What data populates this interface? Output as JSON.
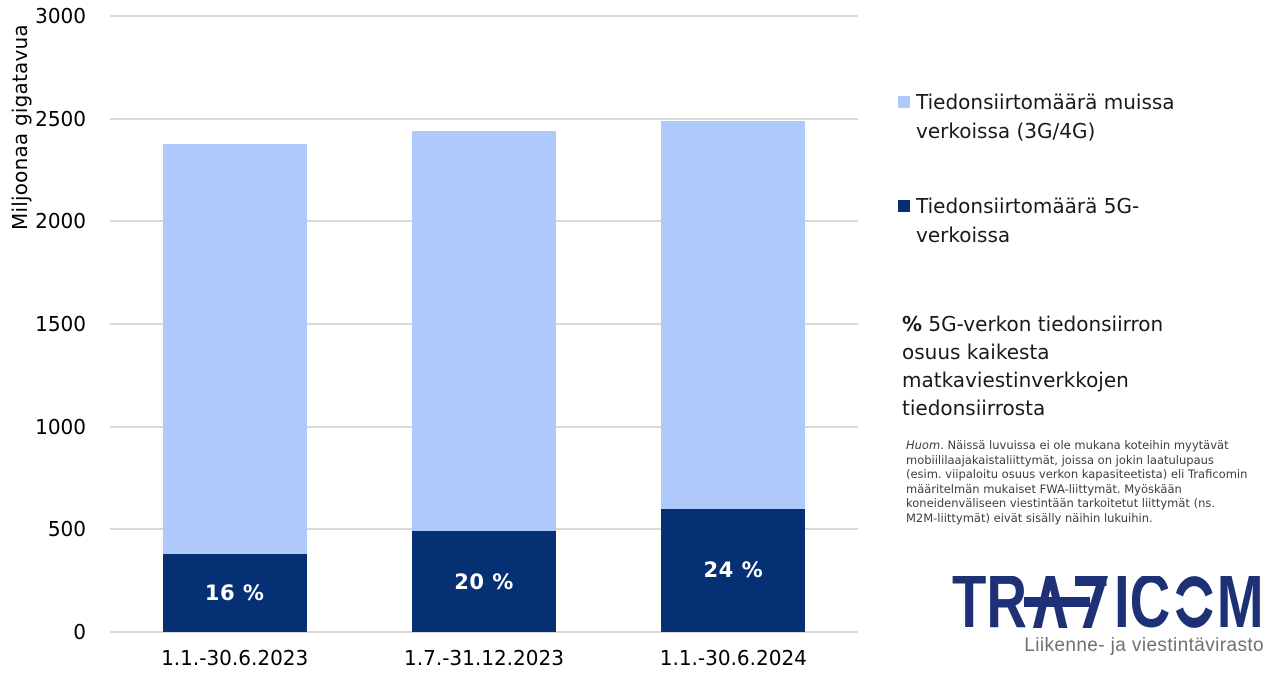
{
  "chart_data": {
    "type": "bar",
    "stacked": true,
    "title": "",
    "xlabel": "",
    "ylabel": "Miljoonaa gigatavua",
    "ylim": [
      0,
      3000
    ],
    "yticks": [
      0,
      500,
      1000,
      1500,
      2000,
      2500,
      3000
    ],
    "grid": "horizontal",
    "gridline_color": "#D9D9D9",
    "legend_position": "right",
    "categories": [
      "1.1.-30.6.2023",
      "1.7.-31.12.2023",
      "1.1.-30.6.2024"
    ],
    "series": [
      {
        "name": "Tiedonsiirtomäärä muissa verkoissa (3G/4G)",
        "color": "#AEC9FA",
        "stack_position": "top",
        "values": [
          1995,
          1950,
          1890
        ]
      },
      {
        "name": "Tiedonsiirtomäärä 5G-verkoissa",
        "color": "#053073",
        "stack_position": "bottom",
        "values": [
          380,
          490,
          600
        ]
      }
    ],
    "totals": [
      2375,
      2440,
      2490
    ],
    "bar_labels": {
      "on_series": "Tiedonsiirtomäärä 5G-verkoissa",
      "values": [
        "16 %",
        "20 %",
        "24 %"
      ],
      "color": "#FFFFFF"
    }
  },
  "annotation": {
    "symbol": "%",
    "text": "5G-verkon tiedonsiirron osuus kaikesta matkaviestinverkkojen tiedonsiirrosta"
  },
  "note": {
    "lead": "Huom",
    "body": ". Näissä luvuissa ei ole mukana koteihin myytävät mobiililaajakaistaliittymät, joissa on jokin laatulupaus (esim. viipaloitu osuus verkon kapasiteetista) eli Traficomin määritelmän mukaiset FWA-liittymät. Myöskään koneidenväliseen viestintään tarkoitetut liittymät (ns. M2M-liittymät) eivät sisälly näihin lukuihin."
  },
  "logo": {
    "wordmark": "TRAFICOM",
    "wordmark_segments": [
      "TR",
      "IC",
      "M"
    ],
    "tagline": "Liikenne- ja viestintävirasto",
    "color": "#1E3076",
    "tagline_color": "#6F7072"
  }
}
